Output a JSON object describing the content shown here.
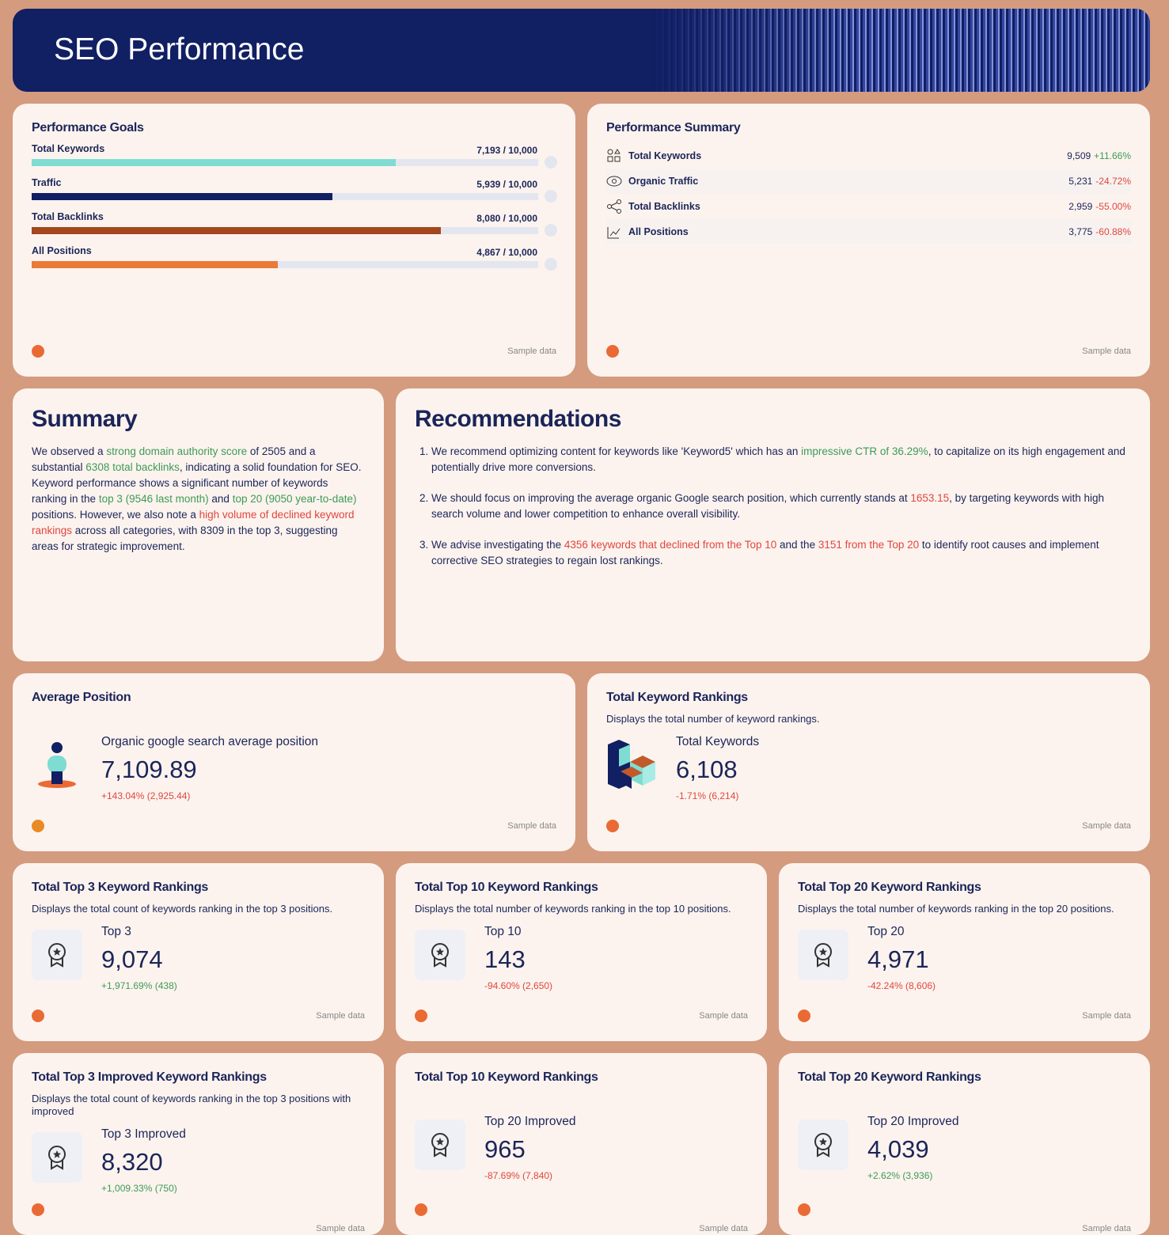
{
  "header": {
    "title": "SEO Performance"
  },
  "goals": {
    "title": "Performance Goals",
    "footer": "Sample data",
    "items": [
      {
        "label": "Total Keywords",
        "value": 7193,
        "target": 10000,
        "progress_label": "7,193 / 10,000",
        "color": "#7fdcd3"
      },
      {
        "label": "Traffic",
        "value": 5939,
        "target": 10000,
        "progress_label": "5,939 / 10,000",
        "color": "#111f63"
      },
      {
        "label": "Total Backlinks",
        "value": 8080,
        "target": 10000,
        "progress_label": "8,080 / 10,000",
        "color": "#a3471f"
      },
      {
        "label": "All Positions",
        "value": 4867,
        "target": 10000,
        "progress_label": "4,867 / 10,000",
        "color": "#ea7a37"
      }
    ]
  },
  "summary_table": {
    "title": "Performance Summary",
    "footer": "Sample data",
    "rows": [
      {
        "label": "Total Keywords",
        "value": "9,509",
        "change": "+11.66%",
        "tone": "green"
      },
      {
        "label": "Organic Traffic",
        "value": "5,231",
        "change": "-24.72%",
        "tone": "red"
      },
      {
        "label": "Total Backlinks",
        "value": "2,959",
        "change": "-55.00%",
        "tone": "red"
      },
      {
        "label": "All Positions",
        "value": "3,775",
        "change": "-60.88%",
        "tone": "red"
      }
    ]
  },
  "summary": {
    "title": "Summary",
    "segments": [
      {
        "text": "We observed a ",
        "tone": "normal"
      },
      {
        "text": "strong domain authority score",
        "tone": "green"
      },
      {
        "text": " of 2505 and a substantial ",
        "tone": "normal"
      },
      {
        "text": "6308 total backlinks",
        "tone": "green"
      },
      {
        "text": ", indicating a solid foundation for SEO. Keyword performance shows a significant number of keywords ranking in the ",
        "tone": "normal"
      },
      {
        "text": "top 3 (9546 last month)",
        "tone": "green"
      },
      {
        "text": " and ",
        "tone": "normal"
      },
      {
        "text": "top 20 (9050 year-to-date)",
        "tone": "green"
      },
      {
        "text": " positions. However, we also note a ",
        "tone": "normal"
      },
      {
        "text": "high volume of declined keyword rankings",
        "tone": "red"
      },
      {
        "text": " across all categories, with 8309 in the top 3, suggesting areas for strategic improvement.",
        "tone": "normal"
      }
    ]
  },
  "recommendations": {
    "title": "Recommendations",
    "items": [
      [
        {
          "text": "We recommend optimizing content for keywords like 'Keyword5' which has an ",
          "tone": "normal"
        },
        {
          "text": "impressive CTR of 36.29%",
          "tone": "green"
        },
        {
          "text": ", to capitalize on its high engagement and potentially drive more conversions.",
          "tone": "normal"
        }
      ],
      [
        {
          "text": "We should focus on improving the average organic Google search position, which currently stands at ",
          "tone": "normal"
        },
        {
          "text": "1653.15",
          "tone": "red"
        },
        {
          "text": ", by targeting keywords with high search volume and lower competition to enhance overall visibility.",
          "tone": "normal"
        }
      ],
      [
        {
          "text": "We advise investigating the ",
          "tone": "normal"
        },
        {
          "text": "4356 keywords that declined from the Top 10",
          "tone": "red"
        },
        {
          "text": " and the ",
          "tone": "normal"
        },
        {
          "text": "3151 from the Top 20",
          "tone": "red"
        },
        {
          "text": " to identify root causes and implement corrective SEO strategies to regain lost rankings.",
          "tone": "normal"
        }
      ]
    ]
  },
  "metric_cards": [
    {
      "title": "Average Position",
      "metric_label": "Organic google search average position",
      "value": "7,109.89",
      "change": "+143.04% (2,925.44)",
      "tone": "red",
      "footer": "Sample data",
      "icon": "person"
    },
    {
      "title": "Total Keyword Rankings",
      "description": "Displays the total number of keyword rankings.",
      "metric_label": "Total Keywords",
      "value": "6,108",
      "change": "-1.71% (6,214)",
      "tone": "red",
      "footer": "Sample data",
      "icon": "cubes"
    },
    {
      "title": "Total Top 3 Keyword Rankings",
      "description": "Displays the total count of keywords ranking in the top 3 positions.",
      "metric_label": "Top 3",
      "value": "9,074",
      "change": "+1,971.69% (438)",
      "tone": "green",
      "footer": "Sample data",
      "icon": "award"
    },
    {
      "title": "Total Top 10 Keyword Rankings",
      "description": "Displays the total number of keywords ranking in the top 10 positions.",
      "metric_label": "Top 10",
      "value": "143",
      "change": "-94.60% (2,650)",
      "tone": "red",
      "footer": "Sample data",
      "icon": "award"
    },
    {
      "title": "Total Top 20 Keyword Rankings",
      "description": "Displays the total number of keywords ranking in the top 20 positions.",
      "metric_label": "Top 20",
      "value": "4,971",
      "change": "-42.24% (8,606)",
      "tone": "red",
      "footer": "Sample data",
      "icon": "award"
    },
    {
      "title": "Total Top 3 Improved Keyword Rankings",
      "description": "Displays the total count of keywords ranking in the top 3 positions with improved",
      "metric_label": "Top 3 Improved",
      "value": "8,320",
      "change": "+1,009.33% (750)",
      "tone": "green",
      "footer": "Sample data",
      "icon": "award"
    },
    {
      "title": "Total Top 10 Keyword Rankings",
      "metric_label": "Top 20 Improved",
      "value": "965",
      "change": "-87.69% (7,840)",
      "tone": "red",
      "footer": "Sample data",
      "icon": "award"
    },
    {
      "title": "Total Top 20 Keyword Rankings",
      "metric_label": "Top 20 Improved",
      "value": "4,039",
      "change": "+2.62% (3,936)",
      "tone": "green",
      "footer": "Sample data",
      "icon": "award"
    }
  ]
}
